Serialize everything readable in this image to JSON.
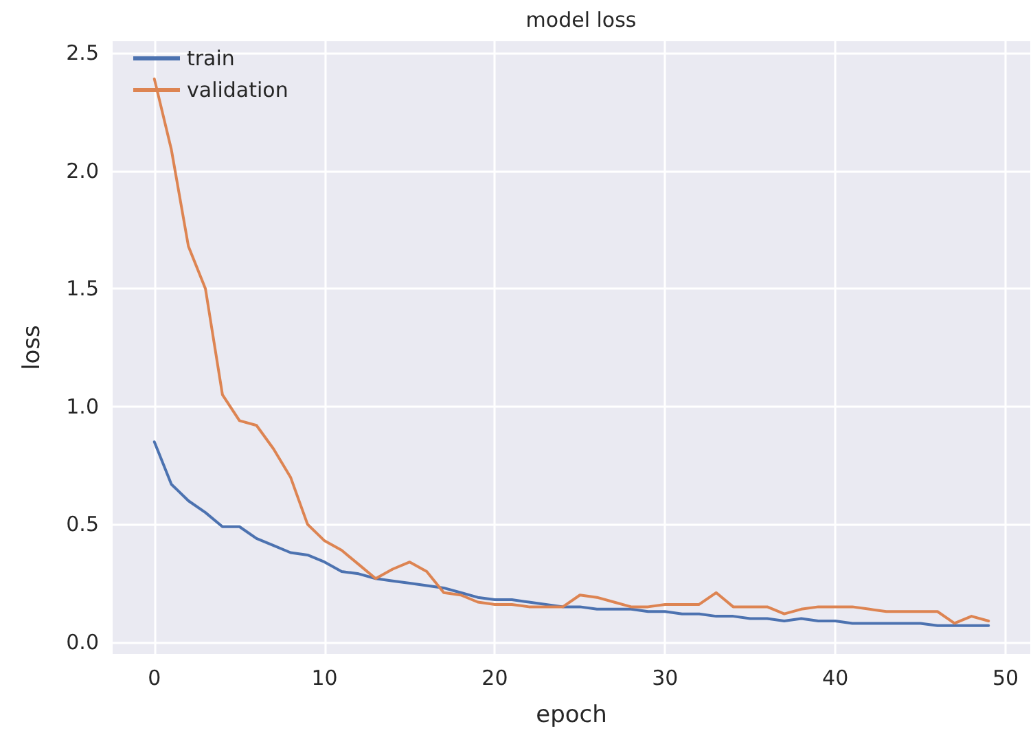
{
  "chart_data": {
    "type": "line",
    "title": "model loss",
    "xlabel": "epoch",
    "ylabel": "loss",
    "x": [
      0,
      1,
      2,
      3,
      4,
      5,
      6,
      7,
      8,
      9,
      10,
      11,
      12,
      13,
      14,
      15,
      16,
      17,
      18,
      19,
      20,
      21,
      22,
      23,
      24,
      25,
      26,
      27,
      28,
      29,
      30,
      31,
      32,
      33,
      34,
      35,
      36,
      37,
      38,
      39,
      40,
      41,
      42,
      43,
      44,
      45,
      46,
      47,
      48,
      49
    ],
    "series": [
      {
        "name": "train",
        "color": "#4c72b0",
        "values": [
          0.85,
          0.67,
          0.6,
          0.55,
          0.49,
          0.49,
          0.44,
          0.41,
          0.38,
          0.37,
          0.34,
          0.3,
          0.29,
          0.27,
          0.26,
          0.25,
          0.24,
          0.23,
          0.21,
          0.19,
          0.18,
          0.18,
          0.17,
          0.16,
          0.15,
          0.15,
          0.14,
          0.14,
          0.14,
          0.13,
          0.13,
          0.12,
          0.12,
          0.11,
          0.11,
          0.1,
          0.1,
          0.09,
          0.1,
          0.09,
          0.09,
          0.08,
          0.08,
          0.08,
          0.08,
          0.08,
          0.07,
          0.07,
          0.07,
          0.07
        ]
      },
      {
        "name": "validation",
        "color": "#dd8452",
        "values": [
          2.39,
          2.09,
          1.68,
          1.5,
          1.05,
          0.94,
          0.92,
          0.82,
          0.7,
          0.5,
          0.43,
          0.39,
          0.33,
          0.27,
          0.31,
          0.34,
          0.3,
          0.21,
          0.2,
          0.17,
          0.16,
          0.16,
          0.15,
          0.15,
          0.15,
          0.2,
          0.19,
          0.17,
          0.15,
          0.15,
          0.16,
          0.16,
          0.16,
          0.21,
          0.15,
          0.15,
          0.15,
          0.12,
          0.14,
          0.15,
          0.15,
          0.15,
          0.14,
          0.13,
          0.13,
          0.13,
          0.13,
          0.08,
          0.11,
          0.09
        ]
      }
    ],
    "xlim": [
      -2.45,
      51.45
    ],
    "xticks": [
      0,
      10,
      20,
      30,
      40,
      50
    ],
    "ylim": [
      -0.05,
      2.55
    ],
    "yticks": [
      {
        "value": 0,
        "label": "0.0"
      },
      {
        "value": 0.5,
        "label": "0.5"
      },
      {
        "value": 1,
        "label": "1.0"
      },
      {
        "value": 1.5,
        "label": "1.5"
      },
      {
        "value": 2,
        "label": "2.0"
      },
      {
        "value": 2.5,
        "label": "2.5"
      }
    ],
    "grid": true,
    "legend": "top left",
    "marker": "none",
    "line_style": "solid"
  }
}
